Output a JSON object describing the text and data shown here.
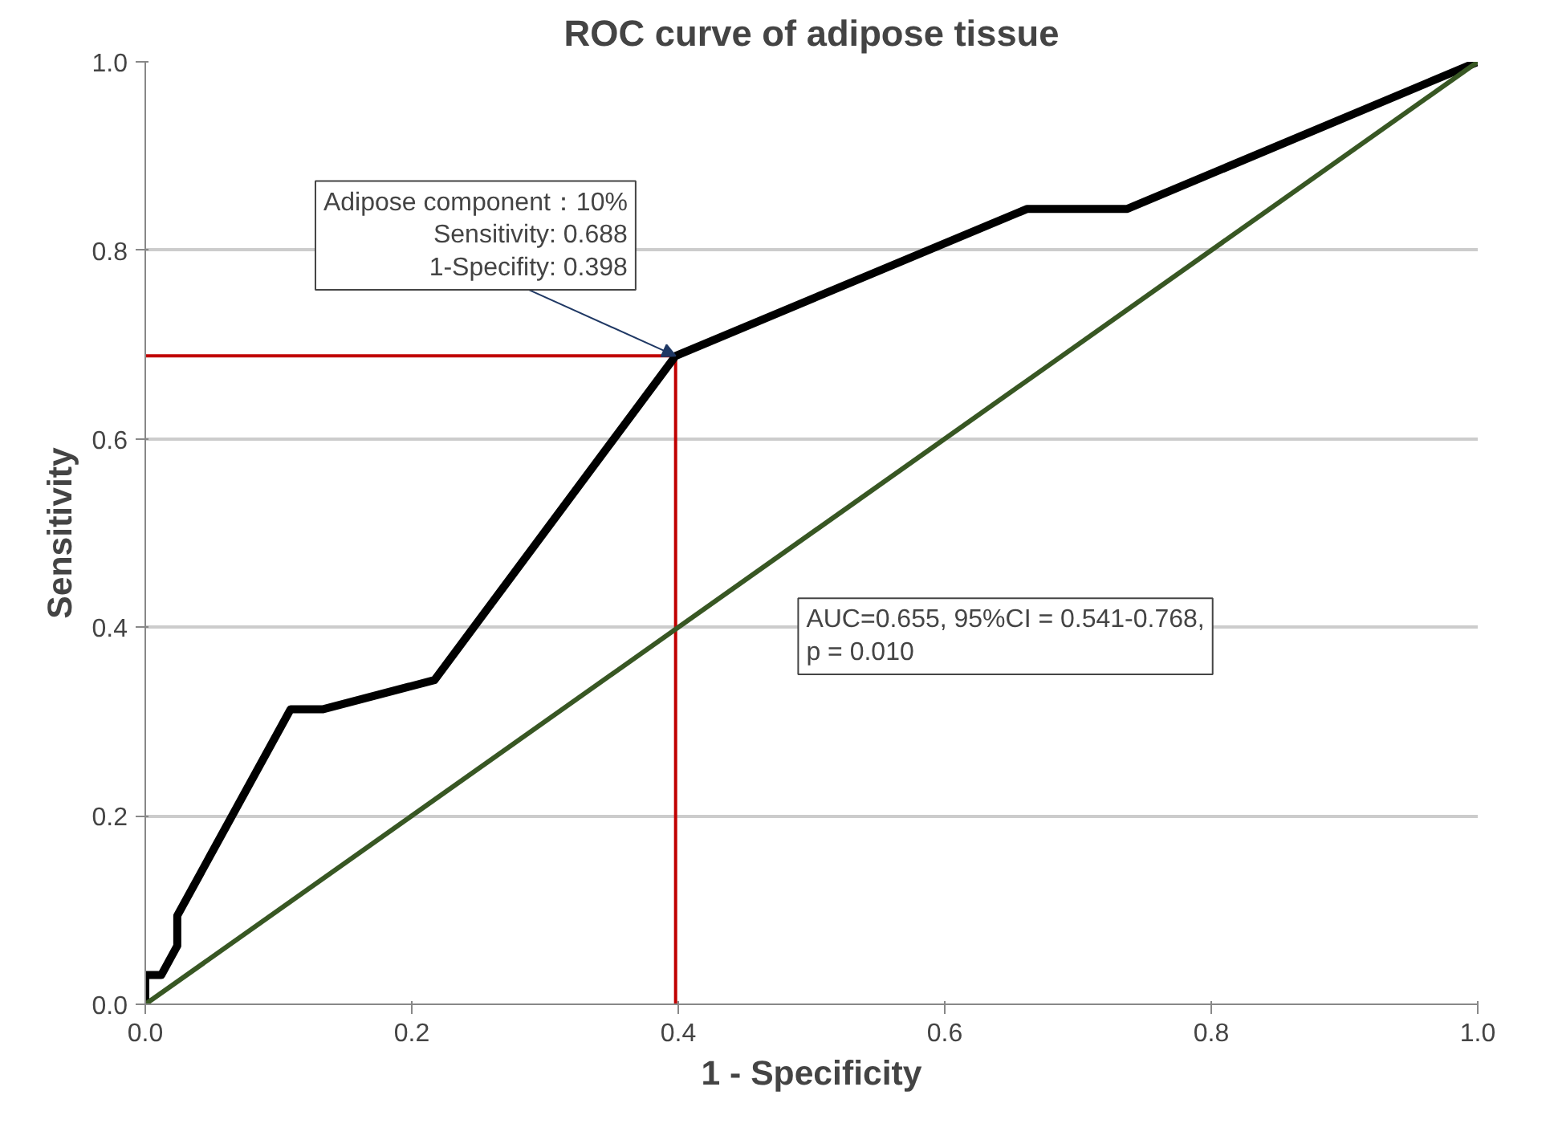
{
  "chart_data": {
    "type": "line",
    "title": "ROC curve of adipose tissue",
    "xlabel": "1 - Specificity",
    "ylabel": "Sensitivity",
    "series": [
      {
        "color": "#000000",
        "x": [
          0,
          0,
          0.012,
          0.024,
          0.024,
          0.109,
          0.133,
          0.217,
          0.398,
          0.662,
          0.737,
          1.0
        ],
        "values": [
          0,
          0.031,
          0.031,
          0.062,
          0.094,
          0.313,
          0.313,
          0.344,
          0.688,
          0.844,
          0.844,
          1.0
        ]
      },
      {
        "color": "#385723",
        "x": [
          0,
          1.0
        ],
        "values": [
          0,
          1.0
        ]
      }
    ],
    "ref_lines": [
      {
        "axis": "y",
        "value": 0.688,
        "color": "#c00000"
      },
      {
        "axis": "x",
        "value": 0.398,
        "color": "#c00000"
      }
    ],
    "annotations": [
      {
        "text": "Adipose component：10%\nSensitivity: 0.688\n1-Specifity: 0.398",
        "x": 0.398,
        "y": 0.688
      },
      "AUC=0.655, 95%CI = 0.541-0.768,\np = 0.010"
    ],
    "xlim": [
      0,
      1.0
    ],
    "ylim": [
      0,
      1.0
    ],
    "xticks": [
      {
        "value": 0,
        "label": "0.0"
      },
      0.2,
      0.4,
      0.6,
      0.8,
      {
        "value": 1.0,
        "label": "1.0"
      }
    ],
    "yticks": [
      {
        "value": 0,
        "label": "0.0"
      },
      0.2,
      0.4,
      0.6,
      0.8,
      {
        "value": 1.0,
        "label": "1.0"
      }
    ],
    "grid": "y"
  }
}
